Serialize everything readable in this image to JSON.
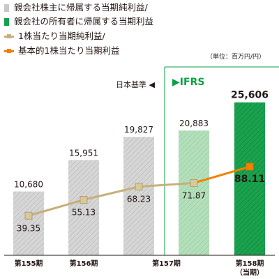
{
  "legend": {
    "items": [
      {
        "label": "親会社株主に帰属する当期純利益/",
        "kind": "bar",
        "color": "#c8c8c8"
      },
      {
        "label": "親会社の所有者に帰属する当期利益",
        "kind": "bar",
        "color": "#18a04c"
      },
      {
        "label": "1株当たり当期純利益/",
        "kind": "line",
        "color": "#c6b07a"
      },
      {
        "label": "基本的1株当たり当期利益",
        "kind": "line",
        "color": "#ef8200"
      }
    ]
  },
  "unit_label": "（単位：百万円/円）",
  "standard_labels": {
    "japan_gaap": "日本基準",
    "ifrs": "IFRS"
  },
  "colors": {
    "bar_gray": "#c8c8c8",
    "bar_light_green": "#a8d8b0",
    "bar_green": "#18a04c",
    "line_tan": "#c6b07a",
    "line_orange": "#ef8200",
    "marker_tan": "#d9c89a",
    "ifrs_green": "#0aa043"
  },
  "chart_data": {
    "type": "bar",
    "categories": [
      "第155期",
      "第156期",
      "第157期",
      "第157期",
      "第158期（当期）"
    ],
    "x_tick_labels": [
      {
        "text": "第155期",
        "bars": [
          0
        ]
      },
      {
        "text": "第156期",
        "bars": [
          1
        ]
      },
      {
        "text": "第157期",
        "bars": [
          2,
          3
        ]
      },
      {
        "text": "第158期（当期）",
        "bars": [
          4
        ]
      }
    ],
    "series": [
      {
        "name": "親会社株主に帰属する当期純利益/親会社の所有者に帰属する当期利益",
        "kind": "bar",
        "values": [
          10680,
          15951,
          19827,
          20883,
          25606
        ],
        "value_labels": [
          "10,680",
          "15,951",
          "19,827",
          "20,883",
          "25,606"
        ],
        "styles": [
          "gray",
          "gray",
          "gray",
          "light_green",
          "green"
        ]
      },
      {
        "name": "1株当たり当期純利益/基本的1株当たり当期利益",
        "kind": "line",
        "values": [
          39.35,
          55.13,
          68.23,
          71.87,
          88.11
        ],
        "value_labels": [
          "39.35",
          "55.13",
          "68.23",
          "71.87",
          "88.11"
        ]
      }
    ],
    "bar_ylim": [
      0,
      32000
    ],
    "line_ylim": [
      0,
      190
    ],
    "grid": false,
    "legend_position": "top-left"
  }
}
